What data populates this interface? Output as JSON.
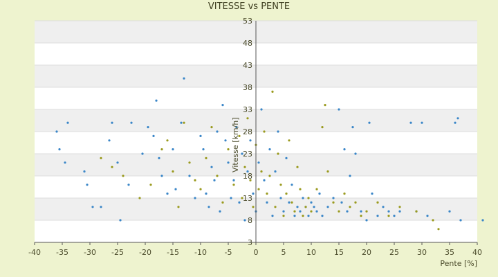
{
  "chart_data": {
    "type": "scatter",
    "title": "VITESSE vs PENTE",
    "xlabel": "Pente [%]",
    "ylabel": "Vitesse [km/h]",
    "xlim": [
      -40,
      40
    ],
    "ylim": [
      3,
      53
    ],
    "x_ticks": [
      "-40",
      "-35",
      "-30",
      "-25",
      "-20",
      "-15",
      "-10",
      "-5",
      "0",
      "5",
      "10",
      "15",
      "20",
      "25",
      "30",
      "35",
      "40"
    ],
    "y_ticks": [
      "53",
      "48",
      "43",
      "38",
      "33",
      "28",
      "23",
      "18",
      "13",
      "8",
      "3"
    ],
    "grid": true,
    "band_colors": {
      "light": "#ffffff",
      "dark": "#efefef"
    },
    "series": [
      {
        "color": "#3a86c8",
        "points": [
          [
            -36,
            28
          ],
          [
            -35.5,
            24
          ],
          [
            -34.5,
            21
          ],
          [
            -34,
            30
          ],
          [
            -31,
            19
          ],
          [
            -30.5,
            16
          ],
          [
            -29.5,
            11
          ],
          [
            -28,
            11
          ],
          [
            -26.5,
            26
          ],
          [
            -26,
            30
          ],
          [
            -25,
            21
          ],
          [
            -24.5,
            8
          ],
          [
            -23,
            16
          ],
          [
            -22.5,
            30
          ],
          [
            -20.5,
            23
          ],
          [
            -19.5,
            29
          ],
          [
            -18.5,
            27
          ],
          [
            -18,
            35
          ],
          [
            -17.5,
            22
          ],
          [
            -17,
            18
          ],
          [
            -16,
            14
          ],
          [
            -15,
            24
          ],
          [
            -14.5,
            15
          ],
          [
            -13.5,
            30
          ],
          [
            -13,
            40
          ],
          [
            -12,
            18
          ],
          [
            -11,
            13
          ],
          [
            -10,
            27
          ],
          [
            -9.5,
            24
          ],
          [
            -9,
            14
          ],
          [
            -8.5,
            11
          ],
          [
            -8,
            20
          ],
          [
            -7.5,
            17
          ],
          [
            -7,
            28
          ],
          [
            -6.5,
            10
          ],
          [
            -6,
            34
          ],
          [
            -5.5,
            26
          ],
          [
            -5,
            21
          ],
          [
            -4.5,
            13
          ],
          [
            -4,
            17
          ],
          [
            -3.5,
            29
          ],
          [
            -3,
            12
          ],
          [
            -2.5,
            23
          ],
          [
            -2,
            8
          ],
          [
            -1.5,
            19
          ],
          [
            -1,
            26
          ],
          [
            -0.5,
            14
          ],
          [
            0,
            10
          ],
          [
            0.5,
            21
          ],
          [
            1,
            33
          ],
          [
            1.5,
            17
          ],
          [
            2,
            12
          ],
          [
            2.5,
            24
          ],
          [
            3,
            9
          ],
          [
            3.5,
            19
          ],
          [
            4,
            28
          ],
          [
            4.5,
            13
          ],
          [
            5,
            10
          ],
          [
            5.5,
            22
          ],
          [
            6,
            12
          ],
          [
            6.5,
            16
          ],
          [
            7,
            9
          ],
          [
            7.5,
            11
          ],
          [
            8,
            10
          ],
          [
            8.5,
            13
          ],
          [
            9,
            11
          ],
          [
            9.5,
            9
          ],
          [
            10,
            12
          ],
          [
            10.5,
            11
          ],
          [
            11,
            10
          ],
          [
            11.5,
            14
          ],
          [
            12,
            9
          ],
          [
            13,
            11
          ],
          [
            14,
            13
          ],
          [
            15,
            33
          ],
          [
            15.5,
            12
          ],
          [
            16,
            24
          ],
          [
            16.5,
            10
          ],
          [
            17,
            18
          ],
          [
            17.5,
            29
          ],
          [
            18,
            23
          ],
          [
            19,
            10
          ],
          [
            20,
            8
          ],
          [
            20.5,
            30
          ],
          [
            21,
            14
          ],
          [
            22,
            9
          ],
          [
            23,
            11
          ],
          [
            24,
            10
          ],
          [
            25,
            9
          ],
          [
            26,
            10
          ],
          [
            28,
            30
          ],
          [
            29,
            10
          ],
          [
            30,
            30
          ],
          [
            31,
            9
          ],
          [
            35,
            10
          ],
          [
            36,
            30
          ],
          [
            36.5,
            31
          ],
          [
            37,
            8
          ],
          [
            41,
            8
          ]
        ]
      },
      {
        "color": "#9a9a1e",
        "points": [
          [
            -28,
            22
          ],
          [
            -26,
            20
          ],
          [
            -24,
            18
          ],
          [
            -21,
            13
          ],
          [
            -19,
            16
          ],
          [
            -17,
            24
          ],
          [
            -16,
            26
          ],
          [
            -15,
            19
          ],
          [
            -14,
            11
          ],
          [
            -13,
            30
          ],
          [
            -12,
            21
          ],
          [
            -11,
            17
          ],
          [
            -10,
            15
          ],
          [
            -9,
            22
          ],
          [
            -8,
            29
          ],
          [
            -7,
            18
          ],
          [
            -6,
            12
          ],
          [
            -5,
            24
          ],
          [
            -4,
            16
          ],
          [
            -3,
            27
          ],
          [
            -2.5,
            13
          ],
          [
            -2,
            20
          ],
          [
            -1.5,
            31
          ],
          [
            -1,
            17
          ],
          [
            -0.5,
            11
          ],
          [
            0,
            25
          ],
          [
            0.5,
            15
          ],
          [
            1,
            19
          ],
          [
            1.5,
            28
          ],
          [
            2,
            14
          ],
          [
            2.5,
            18
          ],
          [
            3,
            37
          ],
          [
            3.5,
            11
          ],
          [
            4,
            23
          ],
          [
            4.5,
            16
          ],
          [
            5,
            9
          ],
          [
            5.5,
            14
          ],
          [
            6,
            26
          ],
          [
            6.5,
            12
          ],
          [
            7,
            10
          ],
          [
            7.5,
            20
          ],
          [
            8,
            15
          ],
          [
            8.5,
            9
          ],
          [
            9,
            11
          ],
          [
            9.5,
            13
          ],
          [
            10,
            10
          ],
          [
            11,
            15
          ],
          [
            12,
            29
          ],
          [
            12.5,
            34
          ],
          [
            13,
            19
          ],
          [
            14,
            12
          ],
          [
            15,
            10
          ],
          [
            16,
            14
          ],
          [
            17,
            11
          ],
          [
            18,
            12
          ],
          [
            19,
            9
          ],
          [
            20,
            10
          ],
          [
            22,
            12
          ],
          [
            24,
            9
          ],
          [
            26,
            11
          ],
          [
            29,
            10
          ],
          [
            32,
            8
          ],
          [
            33,
            6
          ]
        ]
      }
    ]
  }
}
